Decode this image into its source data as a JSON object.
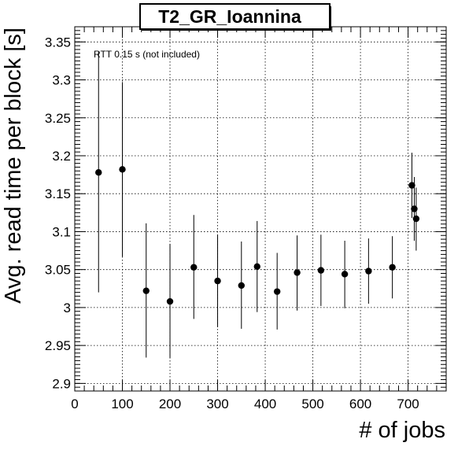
{
  "chart_data": {
    "type": "scatter",
    "title": "T2_GR_Ioannina",
    "xlabel": "# of jobs",
    "ylabel": "Avg. read time per block [s]",
    "annotation": "RTT 0.15 s (not included)",
    "xlim": [
      0,
      780
    ],
    "ylim": [
      2.89,
      3.37
    ],
    "x_ticks": [
      0,
      100,
      200,
      300,
      400,
      500,
      600,
      700
    ],
    "x_tick_labels": [
      "0",
      "100",
      "200",
      "300",
      "400",
      "500",
      "600",
      "700"
    ],
    "y_ticks": [
      2.9,
      2.95,
      3.0,
      3.05,
      3.1,
      3.15,
      3.2,
      3.25,
      3.3,
      3.35
    ],
    "y_tick_labels": [
      "2.9",
      "2.95",
      "3",
      "3.05",
      "3.1",
      "3.15",
      "3.2",
      "3.25",
      "3.3",
      "3.35"
    ],
    "grid": true,
    "legend": "none",
    "marker_color": "#000000",
    "points": [
      {
        "x": 50,
        "y": 3.178,
        "low": 3.02,
        "high": 3.337
      },
      {
        "x": 100,
        "y": 3.182,
        "low": 3.067,
        "high": 3.297
      },
      {
        "x": 150,
        "y": 3.022,
        "low": 2.934,
        "high": 3.111
      },
      {
        "x": 200,
        "y": 3.008,
        "low": 2.933,
        "high": 3.084
      },
      {
        "x": 250,
        "y": 3.053,
        "low": 2.985,
        "high": 3.122
      },
      {
        "x": 300,
        "y": 3.035,
        "low": 2.974,
        "high": 3.096
      },
      {
        "x": 350,
        "y": 3.029,
        "low": 2.972,
        "high": 3.087
      },
      {
        "x": 383,
        "y": 3.054,
        "low": 2.994,
        "high": 3.114
      },
      {
        "x": 425,
        "y": 3.021,
        "low": 2.971,
        "high": 3.072
      },
      {
        "x": 467,
        "y": 3.046,
        "low": 2.996,
        "high": 3.095
      },
      {
        "x": 517,
        "y": 3.049,
        "low": 3.002,
        "high": 3.096
      },
      {
        "x": 567,
        "y": 3.044,
        "low": 2.999,
        "high": 3.088
      },
      {
        "x": 617,
        "y": 3.048,
        "low": 3.005,
        "high": 3.091
      },
      {
        "x": 667,
        "y": 3.053,
        "low": 3.012,
        "high": 3.094
      },
      {
        "x": 708,
        "y": 3.161,
        "low": 3.118,
        "high": 3.204
      },
      {
        "x": 713,
        "y": 3.13,
        "low": 3.088,
        "high": 3.172
      },
      {
        "x": 717,
        "y": 3.117,
        "low": 3.075,
        "high": 3.158
      }
    ]
  }
}
